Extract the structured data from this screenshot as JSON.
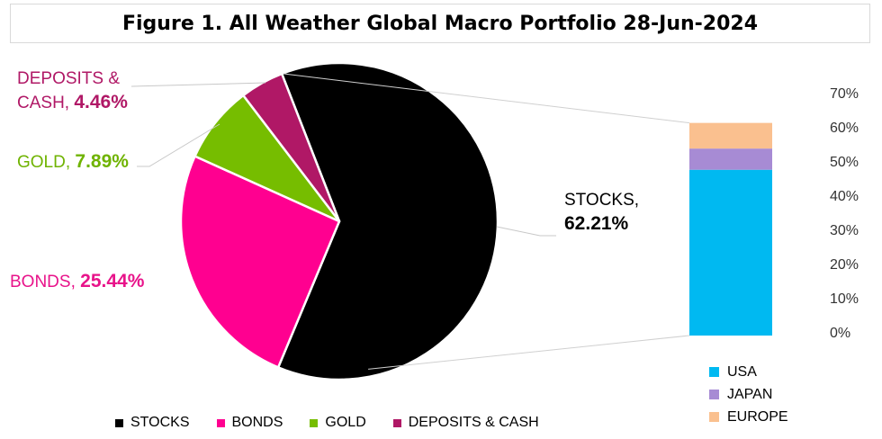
{
  "title": "Figure 1. All Weather Global Macro Portfolio 28-Jun-2024",
  "chart_data": [
    {
      "type": "pie",
      "slices": [
        {
          "label": "STOCKS",
          "value": 62.21,
          "display": "62.21%",
          "color": "#000000"
        },
        {
          "label": "BONDS",
          "value": 25.44,
          "display": "25.44%",
          "color": "#ff0090"
        },
        {
          "label": "GOLD",
          "value": 7.89,
          "display": "7.89%",
          "color": "#76bd00"
        },
        {
          "label": "DEPOSITS & CASH",
          "value": 4.46,
          "display": "4.46%",
          "color": "#b01866"
        }
      ],
      "data_labels": {
        "stocks_a": "STOCKS,",
        "stocks_b": "62.21%",
        "bonds_a": "BONDS,",
        "bonds_b": "25.44%",
        "gold_a": "GOLD,",
        "gold_b": "7.89%",
        "deposits_a": "DEPOSITS &",
        "deposits_b": "CASH,",
        "deposits_c": "4.46%"
      },
      "legend": [
        "STOCKS",
        "BONDS",
        "GOLD",
        "DEPOSITS & CASH"
      ],
      "legend_placement": "bottom"
    },
    {
      "type": "bar",
      "stacked": true,
      "series": [
        {
          "name": "USA",
          "values": [
            48.5
          ],
          "color": "#00b9f1"
        },
        {
          "name": "JAPAN",
          "values": [
            6.2
          ],
          "color": "#a78bd4"
        },
        {
          "name": "EUROPE",
          "values": [
            7.5
          ],
          "color": "#fac08f"
        }
      ],
      "ylim": [
        0,
        70
      ],
      "ytick_labels": [
        "0%",
        "10%",
        "20%",
        "30%",
        "40%",
        "50%",
        "60%",
        "70%"
      ],
      "grid": false,
      "legend": [
        "USA",
        "JAPAN",
        "EUROPE"
      ],
      "legend_placement": "bottom"
    }
  ]
}
